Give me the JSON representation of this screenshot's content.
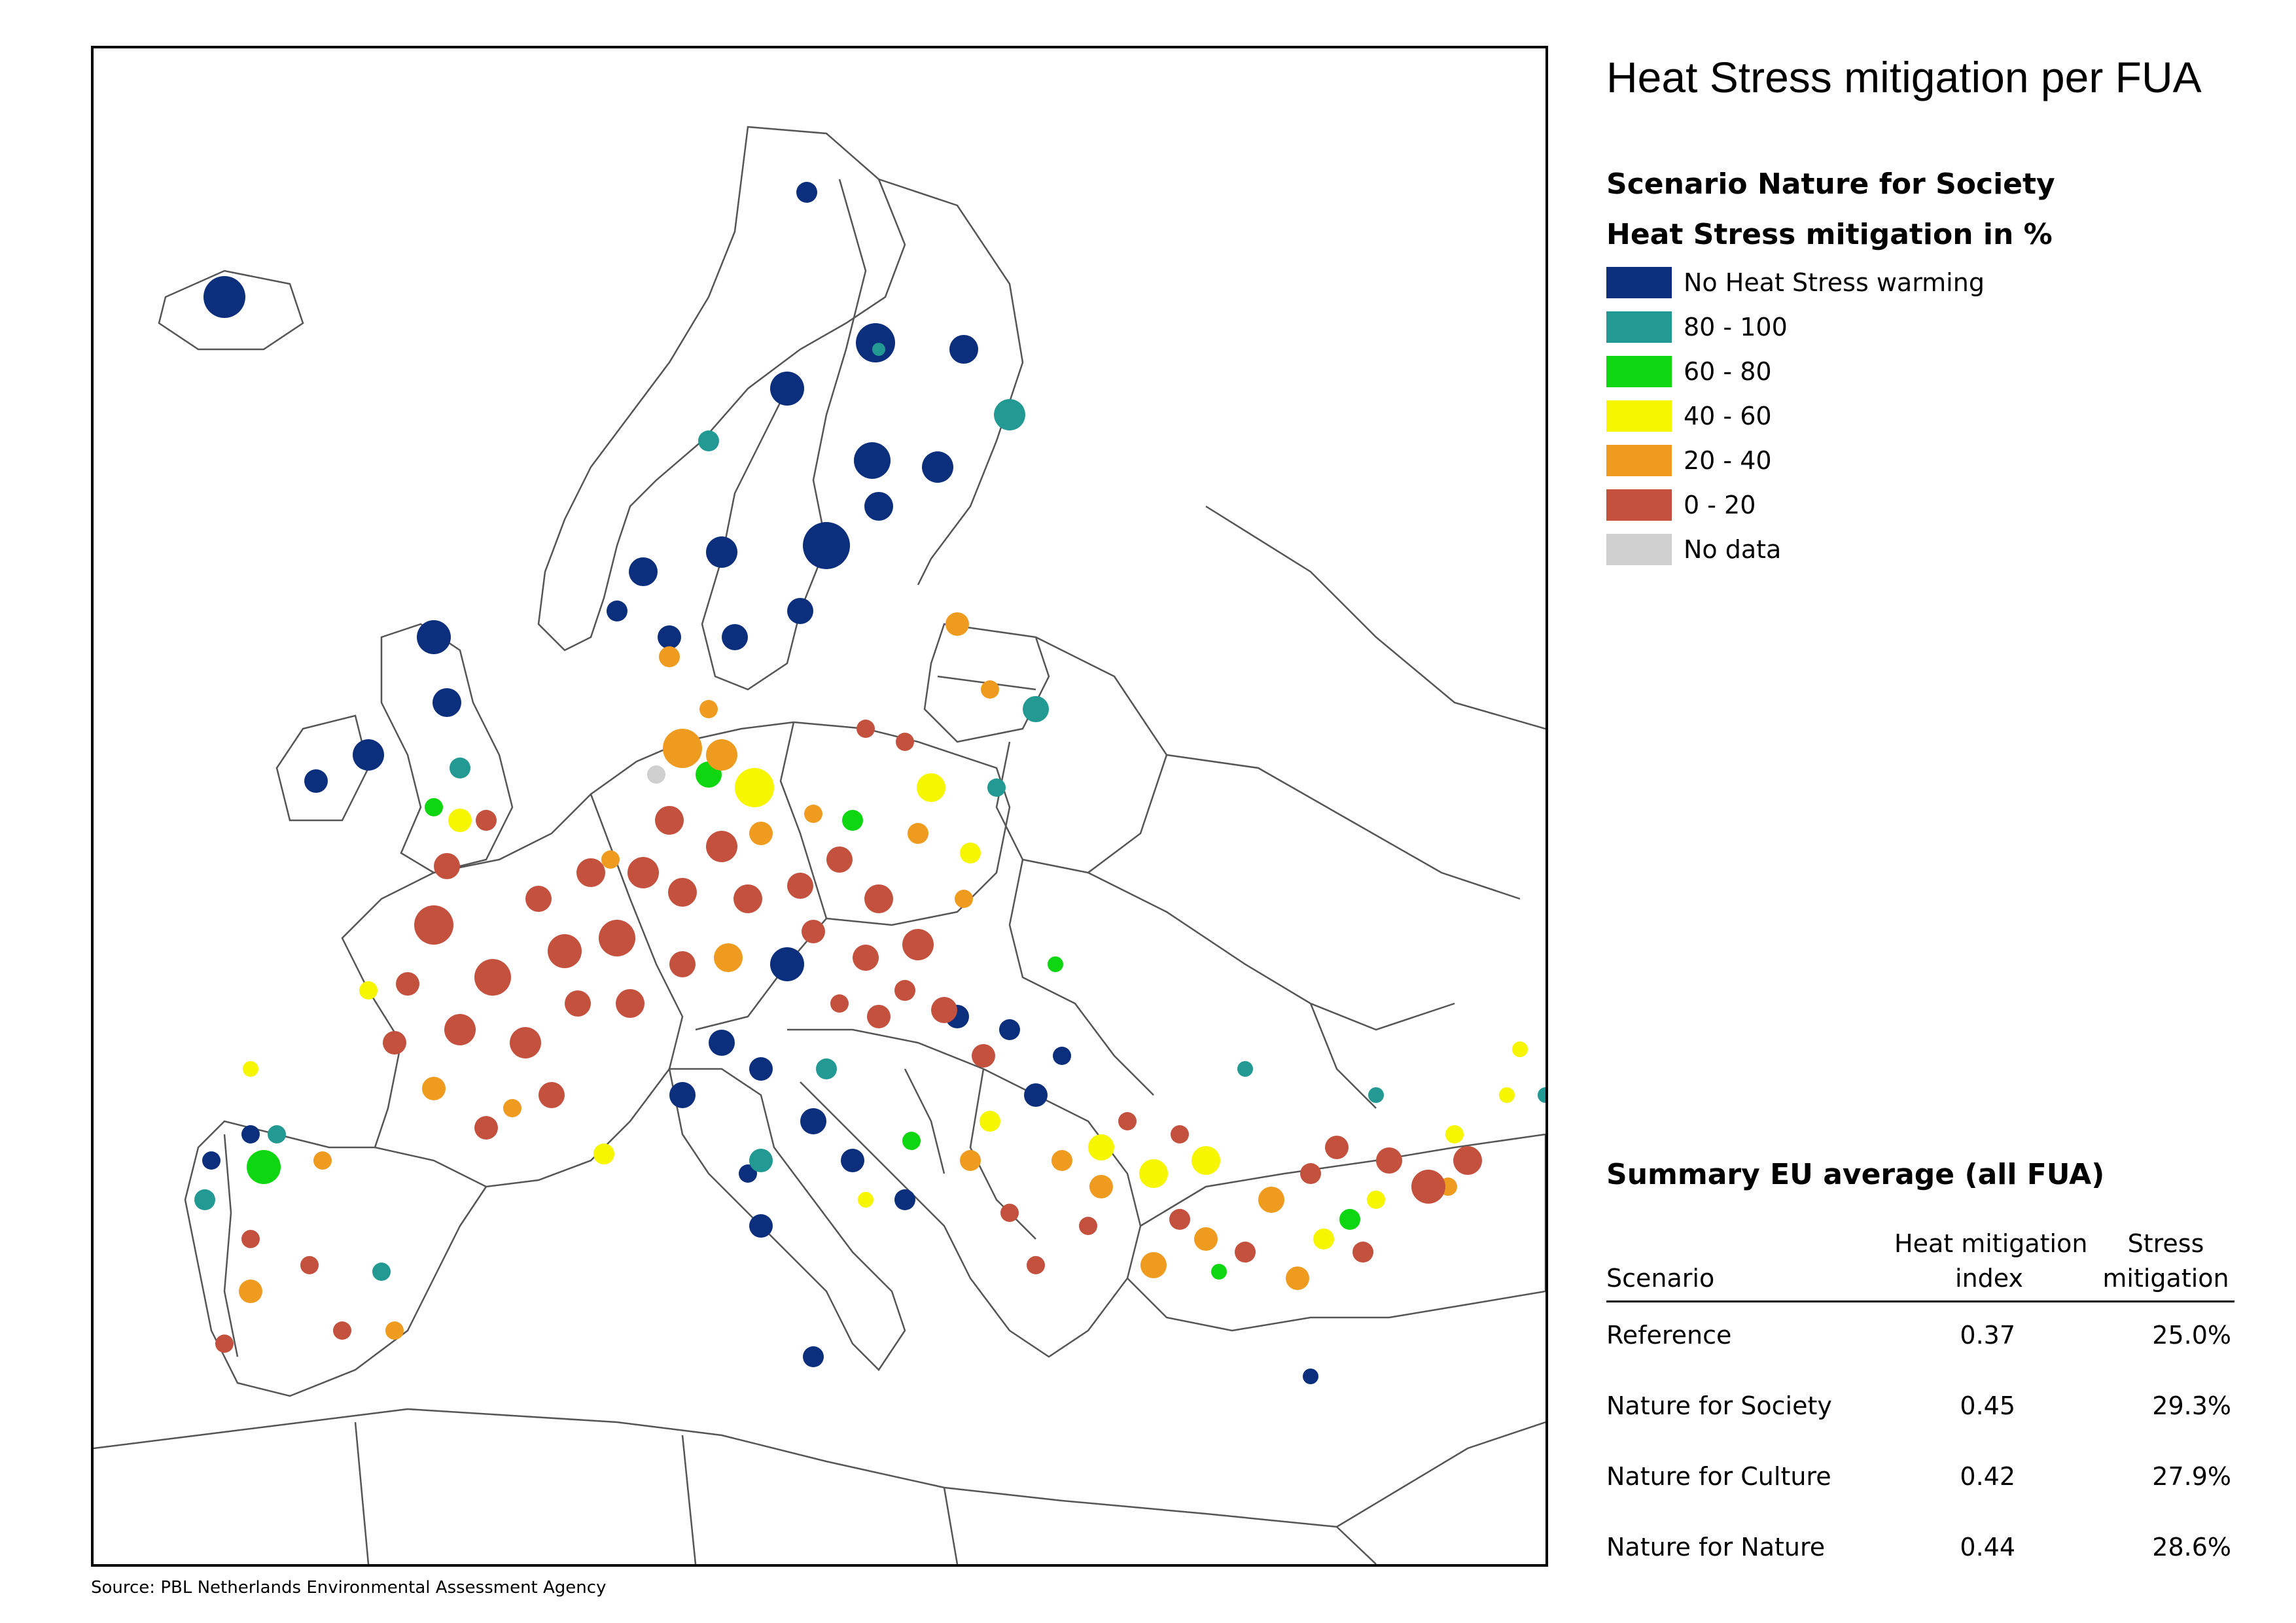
{
  "title": "Heat Stress mitigation per FUA",
  "scenario_heading": "Scenario Nature for Society",
  "legend": {
    "heading": "Heat Stress mitigation in %",
    "items": [
      {
        "label": "No Heat Stress warming",
        "color": "#0b2f7c"
      },
      {
        "label": "80 - 100",
        "color": "#229a93"
      },
      {
        "label": "60 - 80",
        "color": "#0ed611"
      },
      {
        "label": "40 - 60",
        "color": "#f6f600"
      },
      {
        "label": "20 - 40",
        "color": "#ee9b1f"
      },
      {
        "label": "0 - 20",
        "color": "#c4513e"
      },
      {
        "label": "No data",
        "color": "#cfcfcf"
      }
    ]
  },
  "summary": {
    "heading": "Summary EU average (all FUA)",
    "col_scenario": "Scenario",
    "col_heat_line1": "Heat mitigation",
    "col_heat_line2": "index",
    "col_stress_line1": "Stress",
    "col_stress_line2": "mitigation",
    "rows": [
      {
        "scenario": "Reference",
        "heat_index": "0.37",
        "stress": "25.0%"
      },
      {
        "scenario": "Nature for Society",
        "heat_index": "0.45",
        "stress": "29.3%"
      },
      {
        "scenario": "Nature for Culture",
        "heat_index": "0.42",
        "stress": "27.9%"
      },
      {
        "scenario": "Nature for Nature",
        "heat_index": "0.44",
        "stress": "28.6%"
      }
    ]
  },
  "source": "Source: PBL Netherlands Environmental Assessment Agency"
}
